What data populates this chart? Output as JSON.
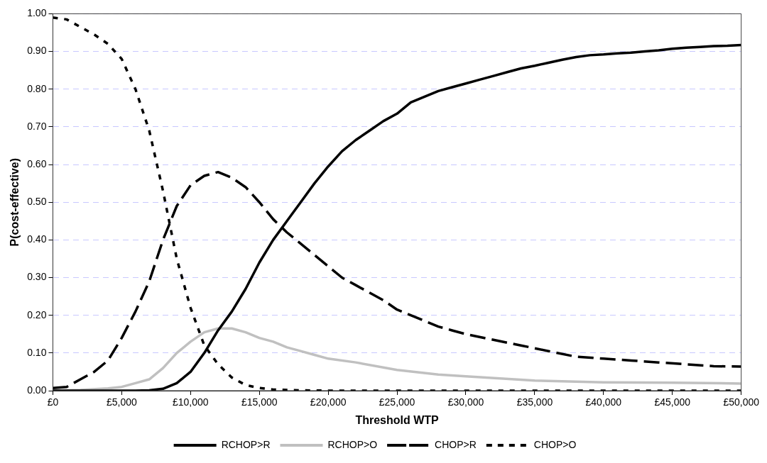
{
  "chart_data": {
    "type": "line",
    "xlabel": "Threshold WTP",
    "ylabel": "P(cost-effective)",
    "xlim": [
      0,
      50000
    ],
    "xticks": [
      {
        "value": 0,
        "label": "£0"
      },
      {
        "value": 5000,
        "label": "£5,000"
      },
      {
        "value": 10000,
        "label": "£10,000"
      },
      {
        "value": 15000,
        "label": "£15,000"
      },
      {
        "value": 20000,
        "label": "£20,000"
      },
      {
        "value": 25000,
        "label": "£25,000"
      },
      {
        "value": 30000,
        "label": "£30,000"
      },
      {
        "value": 35000,
        "label": "£35,000"
      },
      {
        "value": 40000,
        "label": "£40,000"
      },
      {
        "value": 45000,
        "label": "£45,000"
      },
      {
        "value": 50000,
        "label": "£50,000"
      }
    ],
    "ylim": [
      0,
      1
    ],
    "yticks": [
      {
        "value": 0,
        "label": "0.00"
      },
      {
        "value": 0.1,
        "label": "0.10"
      },
      {
        "value": 0.2,
        "label": "0.20"
      },
      {
        "value": 0.3,
        "label": "0.30"
      },
      {
        "value": 0.4,
        "label": "0.40"
      },
      {
        "value": 0.5,
        "label": "0.50"
      },
      {
        "value": 0.6,
        "label": "0.60"
      },
      {
        "value": 0.7,
        "label": "0.70"
      },
      {
        "value": 0.8,
        "label": "0.80"
      },
      {
        "value": 0.9,
        "label": "0.90"
      },
      {
        "value": 1,
        "label": "1.00"
      }
    ],
    "grid": "y",
    "legend": "bottom",
    "marker": "none",
    "series": [
      {
        "name": "RCHOP>R",
        "color": "#000000",
        "line_style": "solid",
        "x": [
          0,
          2000,
          4000,
          6000,
          7000,
          8000,
          9000,
          10000,
          11000,
          12000,
          13000,
          14000,
          15000,
          16000,
          17000,
          18000,
          19000,
          20000,
          21000,
          22000,
          23000,
          24000,
          25000,
          26000,
          27000,
          28000,
          29000,
          30000,
          31000,
          32000,
          33000,
          34000,
          35000,
          36000,
          37000,
          38000,
          39000,
          40000,
          41000,
          42000,
          43000,
          44000,
          45000,
          46000,
          47000,
          48000,
          49000,
          50000
        ],
        "values": [
          0,
          0,
          0,
          0,
          0.001,
          0.005,
          0.02,
          0.05,
          0.1,
          0.16,
          0.21,
          0.27,
          0.34,
          0.4,
          0.45,
          0.5,
          0.55,
          0.595,
          0.635,
          0.665,
          0.69,
          0.715,
          0.735,
          0.765,
          0.78,
          0.795,
          0.805,
          0.815,
          0.825,
          0.835,
          0.845,
          0.855,
          0.862,
          0.87,
          0.878,
          0.885,
          0.89,
          0.892,
          0.895,
          0.897,
          0.9,
          0.903,
          0.907,
          0.91,
          0.912,
          0.914,
          0.915,
          0.917
        ]
      },
      {
        "name": "RCHOP>O",
        "color": "#c0c0c0",
        "line_style": "solid",
        "x": [
          0,
          2000,
          4000,
          5000,
          6000,
          7000,
          8000,
          9000,
          10000,
          11000,
          12000,
          13000,
          14000,
          15000,
          16000,
          17000,
          18000,
          19000,
          20000,
          22000,
          25000,
          28000,
          30000,
          35000,
          40000,
          45000,
          50000
        ],
        "values": [
          0,
          0.002,
          0.006,
          0.01,
          0.02,
          0.03,
          0.06,
          0.1,
          0.13,
          0.155,
          0.165,
          0.165,
          0.155,
          0.14,
          0.13,
          0.115,
          0.105,
          0.095,
          0.085,
          0.075,
          0.055,
          0.043,
          0.038,
          0.027,
          0.022,
          0.021,
          0.019
        ]
      },
      {
        "name": "CHOP>R",
        "color": "#000000",
        "line_style": "dashed",
        "x": [
          0,
          1000,
          2000,
          3000,
          4000,
          5000,
          6000,
          7000,
          8000,
          9000,
          10000,
          11000,
          12000,
          13000,
          14000,
          15000,
          16000,
          17000,
          18000,
          19000,
          20000,
          21000,
          22000,
          23000,
          24000,
          25000,
          26000,
          27000,
          28000,
          29000,
          30000,
          32000,
          34000,
          36000,
          38000,
          40000,
          42000,
          44000,
          46000,
          48000,
          50000
        ],
        "values": [
          0.007,
          0.01,
          0.03,
          0.05,
          0.08,
          0.14,
          0.21,
          0.29,
          0.4,
          0.49,
          0.545,
          0.57,
          0.58,
          0.565,
          0.54,
          0.5,
          0.455,
          0.42,
          0.39,
          0.36,
          0.33,
          0.3,
          0.28,
          0.26,
          0.24,
          0.215,
          0.2,
          0.185,
          0.17,
          0.16,
          0.15,
          0.135,
          0.12,
          0.105,
          0.09,
          0.085,
          0.08,
          0.075,
          0.07,
          0.065,
          0.064
        ]
      },
      {
        "name": "CHOP>O",
        "color": "#000000",
        "line_style": "dotted",
        "x": [
          0,
          1000,
          2000,
          3000,
          4000,
          5000,
          6000,
          7000,
          8000,
          9000,
          10000,
          11000,
          12000,
          13000,
          14000,
          15000,
          16000,
          18000,
          20000,
          30000,
          40000,
          50000
        ],
        "values": [
          0.99,
          0.985,
          0.965,
          0.945,
          0.92,
          0.88,
          0.8,
          0.69,
          0.53,
          0.35,
          0.22,
          0.12,
          0.07,
          0.035,
          0.015,
          0.007,
          0.003,
          0.001,
          0,
          0,
          0,
          0
        ]
      }
    ]
  }
}
